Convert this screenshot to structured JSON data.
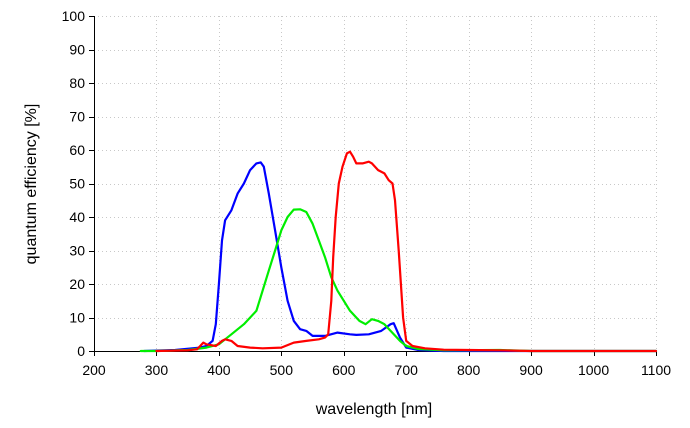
{
  "chart_data": {
    "type": "line",
    "title": "",
    "xlabel": "wavelength [nm]",
    "ylabel": "quantum efficiency [%]",
    "xlim": [
      200,
      1100
    ],
    "ylim": [
      0,
      100
    ],
    "xticks": [
      200,
      300,
      400,
      500,
      600,
      700,
      800,
      900,
      1000,
      1100
    ],
    "yticks": [
      0,
      10,
      20,
      30,
      40,
      50,
      60,
      70,
      80,
      90,
      100
    ],
    "grid": "dotted",
    "legend": "none",
    "series": [
      {
        "color": "#0000ff",
        "points": [
          [
            280,
            0
          ],
          [
            330,
            0.3
          ],
          [
            370,
            1.0
          ],
          [
            380,
            1.5
          ],
          [
            390,
            3
          ],
          [
            395,
            8
          ],
          [
            400,
            20
          ],
          [
            405,
            33
          ],
          [
            410,
            39
          ],
          [
            420,
            42
          ],
          [
            430,
            47
          ],
          [
            440,
            50
          ],
          [
            450,
            54
          ],
          [
            460,
            56
          ],
          [
            467,
            56.3
          ],
          [
            472,
            55
          ],
          [
            480,
            47
          ],
          [
            490,
            36
          ],
          [
            500,
            25
          ],
          [
            510,
            15
          ],
          [
            520,
            9
          ],
          [
            530,
            6.5
          ],
          [
            540,
            6
          ],
          [
            550,
            4.5
          ],
          [
            570,
            4.5
          ],
          [
            590,
            5.5
          ],
          [
            610,
            5
          ],
          [
            620,
            4.8
          ],
          [
            640,
            5
          ],
          [
            660,
            6
          ],
          [
            675,
            8
          ],
          [
            680,
            8.3
          ],
          [
            690,
            4
          ],
          [
            700,
            1
          ],
          [
            720,
            0.3
          ],
          [
            760,
            0
          ],
          [
            1100,
            0
          ]
        ]
      },
      {
        "color": "#00ee00",
        "points": [
          [
            275,
            0
          ],
          [
            300,
            0
          ],
          [
            350,
            0.3
          ],
          [
            380,
            1
          ],
          [
            400,
            2
          ],
          [
            420,
            5
          ],
          [
            440,
            8
          ],
          [
            460,
            12
          ],
          [
            470,
            18
          ],
          [
            480,
            24
          ],
          [
            490,
            30
          ],
          [
            500,
            36
          ],
          [
            510,
            40
          ],
          [
            520,
            42.2
          ],
          [
            530,
            42.3
          ],
          [
            540,
            41.5
          ],
          [
            550,
            38
          ],
          [
            560,
            33
          ],
          [
            570,
            28
          ],
          [
            580,
            22
          ],
          [
            590,
            18
          ],
          [
            600,
            15
          ],
          [
            610,
            12
          ],
          [
            625,
            9
          ],
          [
            635,
            8
          ],
          [
            645,
            9.5
          ],
          [
            655,
            9
          ],
          [
            665,
            8
          ],
          [
            675,
            6
          ],
          [
            690,
            3
          ],
          [
            700,
            1.5
          ],
          [
            720,
            0.6
          ],
          [
            760,
            0.2
          ],
          [
            850,
            0.3
          ],
          [
            900,
            0
          ],
          [
            1100,
            0
          ]
        ]
      },
      {
        "color": "#ff0000",
        "points": [
          [
            300,
            0
          ],
          [
            350,
            0.2
          ],
          [
            365,
            0.5
          ],
          [
            370,
            1.5
          ],
          [
            375,
            2.5
          ],
          [
            380,
            2
          ],
          [
            395,
            1.5
          ],
          [
            405,
            3
          ],
          [
            410,
            3.5
          ],
          [
            420,
            3
          ],
          [
            430,
            1.5
          ],
          [
            450,
            1
          ],
          [
            470,
            0.8
          ],
          [
            500,
            1
          ],
          [
            520,
            2.5
          ],
          [
            540,
            3
          ],
          [
            560,
            3.5
          ],
          [
            570,
            4
          ],
          [
            575,
            5
          ],
          [
            580,
            15
          ],
          [
            583,
            28
          ],
          [
            587,
            40
          ],
          [
            592,
            50
          ],
          [
            598,
            55
          ],
          [
            605,
            59
          ],
          [
            610,
            59.5
          ],
          [
            615,
            58
          ],
          [
            620,
            56
          ],
          [
            630,
            56
          ],
          [
            640,
            56.5
          ],
          [
            645,
            56
          ],
          [
            655,
            54
          ],
          [
            665,
            53
          ],
          [
            672,
            51
          ],
          [
            678,
            50
          ],
          [
            682,
            45
          ],
          [
            688,
            30
          ],
          [
            695,
            10
          ],
          [
            700,
            3
          ],
          [
            710,
            1.5
          ],
          [
            730,
            0.8
          ],
          [
            760,
            0.4
          ],
          [
            800,
            0.3
          ],
          [
            850,
            0.2
          ],
          [
            900,
            0
          ],
          [
            1100,
            0
          ]
        ]
      }
    ]
  }
}
